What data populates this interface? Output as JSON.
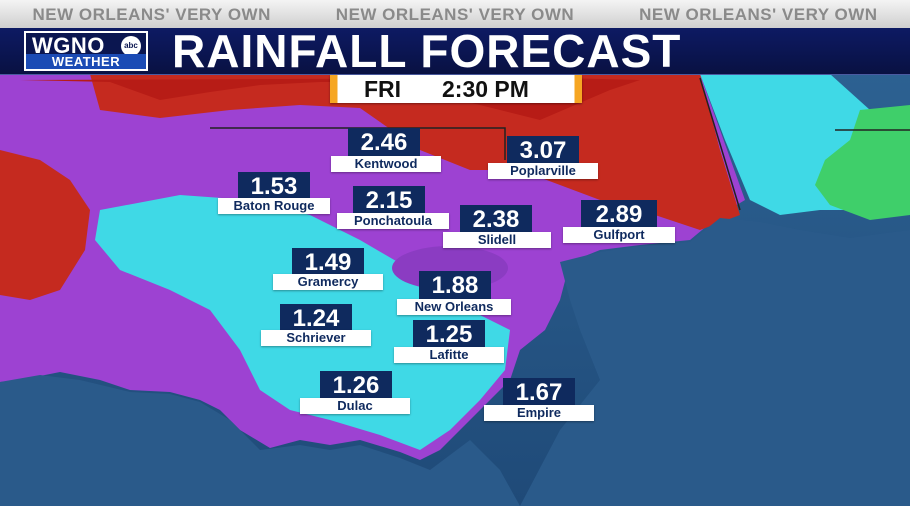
{
  "header": {
    "taglines": [
      "NEW ORLEANS' VERY OWN",
      "NEW ORLEANS' VERY OWN",
      "NEW ORLEANS' VERY OWN"
    ],
    "logo_top": "WGNO",
    "logo_badge": "abc",
    "logo_bottom": "WEATHER",
    "title": "RAINFALL FORECAST"
  },
  "time": {
    "day": "FRI",
    "clock": "2:30 PM"
  },
  "colors": {
    "header_bg": "#0d1a63",
    "accent": "#f6a623",
    "label_bg": "#0f2a5e",
    "rain_heavy": "#c0201a",
    "rain_mid": "#9b3fd0",
    "rain_light": "#39d8e8",
    "rain_low": "#3fcf6a",
    "water": "#2a5a8a"
  },
  "cities": [
    {
      "name": "Kentwood",
      "value": "2.46"
    },
    {
      "name": "Poplarville",
      "value": "3.07"
    },
    {
      "name": "Baton Rouge",
      "value": "1.53"
    },
    {
      "name": "Ponchatoula",
      "value": "2.15"
    },
    {
      "name": "Slidell",
      "value": "2.38"
    },
    {
      "name": "Gulfport",
      "value": "2.89"
    },
    {
      "name": "Gramercy",
      "value": "1.49"
    },
    {
      "name": "New Orleans",
      "value": "1.88"
    },
    {
      "name": "Schriever",
      "value": "1.24"
    },
    {
      "name": "Lafitte",
      "value": "1.25"
    },
    {
      "name": "Dulac",
      "value": "1.26"
    },
    {
      "name": "Empire",
      "value": "1.67"
    }
  ]
}
